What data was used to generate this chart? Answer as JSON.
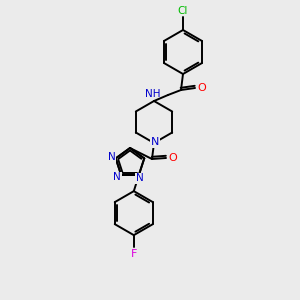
{
  "background_color": "#ebebeb",
  "bond_color": "#000000",
  "atom_colors": {
    "N": "#0000cc",
    "O": "#ff0000",
    "Cl": "#00bb00",
    "F": "#dd00dd",
    "C": "#000000"
  },
  "figsize": [
    3.0,
    3.0
  ],
  "dpi": 100
}
